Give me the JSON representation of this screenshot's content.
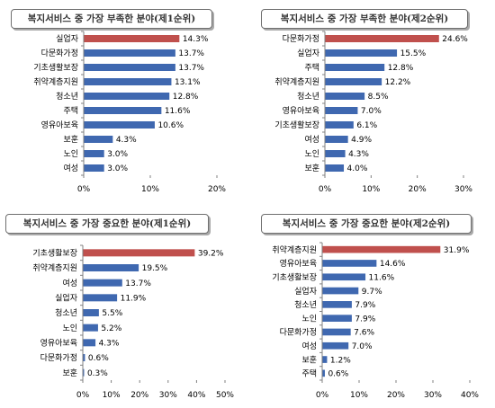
{
  "chart_data": [
    {
      "type": "bar",
      "title": "복지서비스 중 가장 부족한 분야(제1순위)",
      "categories": [
        "실업자",
        "다문화가정",
        "기초생활보장",
        "취약계층지원",
        "청소년",
        "주택",
        "영유아보육",
        "보훈",
        "노인",
        "여성"
      ],
      "values": [
        14.3,
        13.7,
        13.7,
        13.1,
        12.8,
        11.6,
        10.6,
        4.3,
        3.0,
        3.0
      ],
      "value_labels": [
        "14.3%",
        "13.7%",
        "13.7%",
        "13.1%",
        "12.8%",
        "11.6%",
        "10.6%",
        "4.3%",
        "3.0%",
        "3.0%"
      ],
      "xlim": [
        0,
        20
      ],
      "ticks": [
        "0%",
        "10%",
        "20%"
      ],
      "highlight_index": 0
    },
    {
      "type": "bar",
      "title": "복지서비스 중 가장 부족한 분야(제2순위)",
      "categories": [
        "다문화가정",
        "실업자",
        "주택",
        "취약계층지원",
        "청소년",
        "영유아보육",
        "기초생활보장",
        "여성",
        "노인",
        "보훈"
      ],
      "values": [
        24.6,
        15.5,
        12.8,
        12.2,
        8.5,
        7.0,
        6.1,
        4.9,
        4.3,
        4.0
      ],
      "value_labels": [
        "24.6%",
        "15.5%",
        "12.8%",
        "12.2%",
        "8.5%",
        "7.0%",
        "6.1%",
        "4.9%",
        "4.3%",
        "4.0%"
      ],
      "xlim": [
        0,
        30
      ],
      "ticks": [
        "0%",
        "10%",
        "20%",
        "30%"
      ],
      "highlight_index": 0
    },
    {
      "type": "bar",
      "title": "복지서비스 중 가장 중요한 분야(제1순위)",
      "categories": [
        "기초생활보장",
        "취약계층지원",
        "여성",
        "실업자",
        "청소년",
        "노인",
        "영유아보육",
        "다문화가정",
        "보훈"
      ],
      "values": [
        39.2,
        19.5,
        13.7,
        11.9,
        5.5,
        5.2,
        4.3,
        0.6,
        0.3
      ],
      "value_labels": [
        "39.2%",
        "19.5%",
        "13.7%",
        "11.9%",
        "5.5%",
        "5.2%",
        "4.3%",
        "0.6%",
        "0.3%"
      ],
      "xlim": [
        0,
        50
      ],
      "ticks": [
        "0%",
        "10%",
        "20%",
        "30%",
        "40%",
        "50%"
      ],
      "highlight_index": 0
    },
    {
      "type": "bar",
      "title": "복지서비스 중 가장 중요한 분야(제2순위)",
      "categories": [
        "취약계층지원",
        "영유아보육",
        "기초생활보장",
        "실업자",
        "청소년",
        "노인",
        "다문화가정",
        "여성",
        "보훈",
        "주택"
      ],
      "values": [
        31.9,
        14.6,
        11.6,
        9.7,
        7.9,
        7.9,
        7.6,
        7.0,
        1.2,
        0.6
      ],
      "value_labels": [
        "31.9%",
        "14.6%",
        "11.6%",
        "9.7%",
        "7.9%",
        "7.9%",
        "7.6%",
        "7.0%",
        "1.2%",
        "0.6%"
      ],
      "xlim": [
        0,
        40
      ],
      "ticks": [
        "0%",
        "10%",
        "20%",
        "30%",
        "40%"
      ],
      "highlight_index": 0
    }
  ],
  "colors": {
    "bar": "#3f68b0",
    "highlight": "#c0504d",
    "axis": "#808080"
  }
}
